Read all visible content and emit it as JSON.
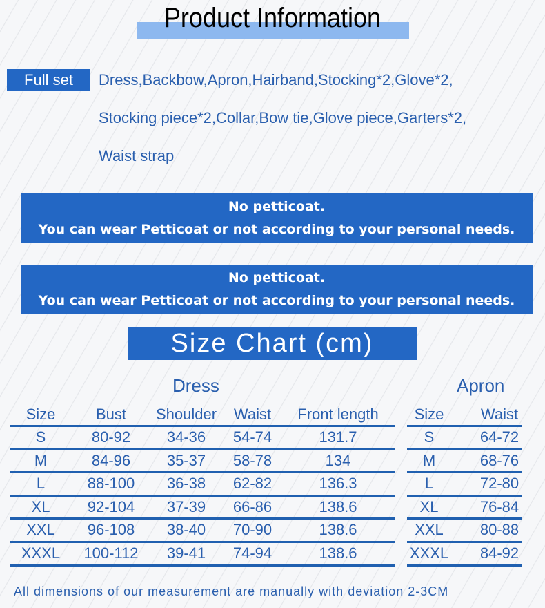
{
  "title": "Product Information",
  "full_set": {
    "label": "Full set",
    "lines": [
      "Dress,Backbow,Apron,Hairband,Stocking*2,Glove*2,",
      "Stocking piece*2,Collar,Bow tie,Glove piece,Garters*2,",
      "Waist strap"
    ]
  },
  "notices": [
    {
      "line1": "No petticoat.",
      "line2": "You can wear Petticoat or not according to your personal needs."
    },
    {
      "line1": "No petticoat.",
      "line2": "You can wear Petticoat or not according to your personal needs."
    }
  ],
  "size_chart_title": "Size Chart (cm)",
  "dress": {
    "title": "Dress",
    "headers": [
      "Size",
      "Bust",
      "Shoulder",
      "Waist",
      "Front length"
    ],
    "rows": [
      [
        "S",
        "80-92",
        "34-36",
        "54-74",
        "131.7"
      ],
      [
        "M",
        "84-96",
        "35-37",
        "58-78",
        "134"
      ],
      [
        "L",
        "88-100",
        "36-38",
        "62-82",
        "136.3"
      ],
      [
        "XL",
        "92-104",
        "37-39",
        "66-86",
        "138.6"
      ],
      [
        "XXL",
        "96-108",
        "38-40",
        "70-90",
        "138.6"
      ],
      [
        "XXXL",
        "100-112",
        "39-41",
        "74-94",
        "138.6"
      ]
    ]
  },
  "apron": {
    "title": "Apron",
    "headers": [
      "Size",
      "Waist"
    ],
    "rows": [
      [
        "S",
        "64-72"
      ],
      [
        "M",
        "68-76"
      ],
      [
        "L",
        "72-80"
      ],
      [
        "XL",
        "76-84"
      ],
      [
        "XXL",
        "80-88"
      ],
      [
        "XXXL",
        "84-92"
      ]
    ]
  },
  "footnote": "All dimensions of our measurement are manually with deviation 2-3CM",
  "colors": {
    "accent": "#2367c4",
    "text_blue": "#2a5fae",
    "title_highlight": "#8db8ef"
  }
}
